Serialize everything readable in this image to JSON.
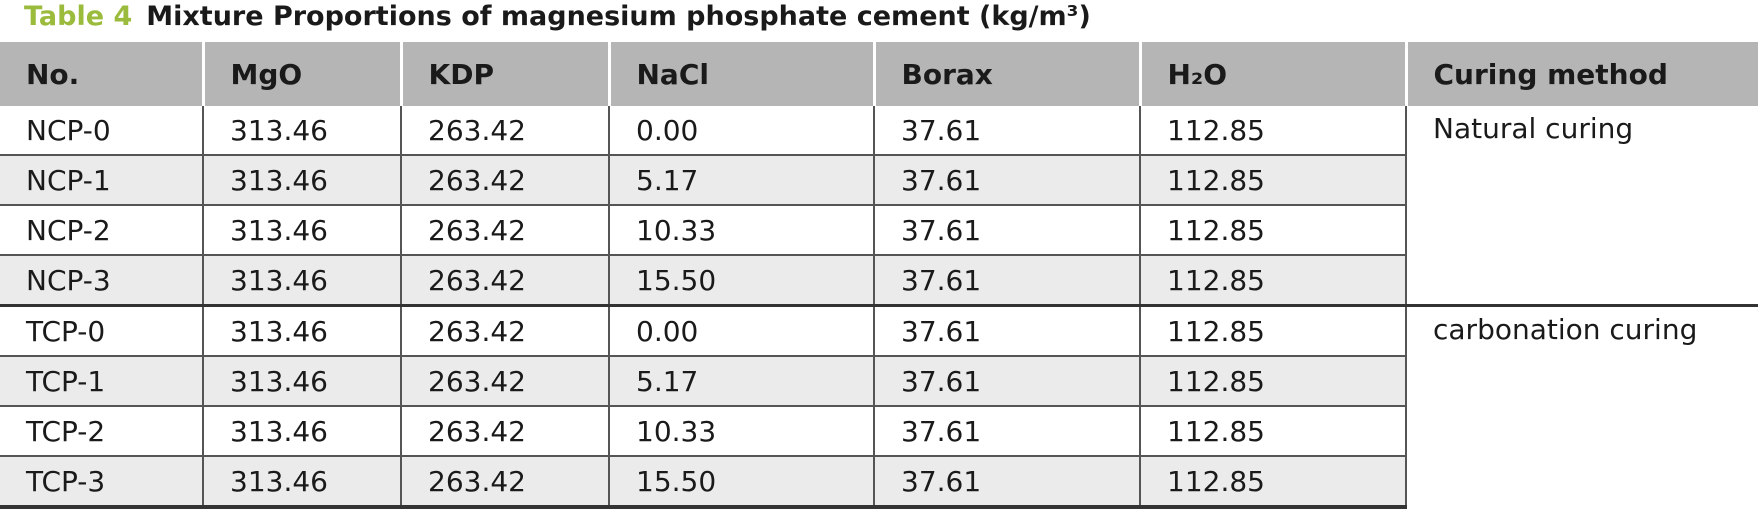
{
  "caption": {
    "label": "Table 4",
    "title": "Mixture Proportions of magnesium phosphate cement (kg/m³)"
  },
  "table": {
    "header": [
      "No.",
      "MgO",
      "KDP",
      "NaCl",
      "Borax",
      "H₂O",
      "Curing method"
    ],
    "groups": [
      {
        "curing": "Natural curing",
        "rows": [
          [
            "NCP-0",
            "313.46",
            "263.42",
            "0.00",
            "37.61",
            "112.85"
          ],
          [
            "NCP-1",
            "313.46",
            "263.42",
            "5.17",
            "37.61",
            "112.85"
          ],
          [
            "NCP-2",
            "313.46",
            "263.42",
            "10.33",
            "37.61",
            "112.85"
          ],
          [
            "NCP-3",
            "313.46",
            "263.42",
            "15.50",
            "37.61",
            "112.85"
          ]
        ]
      },
      {
        "curing": "carbonation curing",
        "rows": [
          [
            "TCP-0",
            "313.46",
            "263.42",
            "0.00",
            "37.61",
            "112.85"
          ],
          [
            "TCP-1",
            "313.46",
            "263.42",
            "5.17",
            "37.61",
            "112.85"
          ],
          [
            "TCP-2",
            "313.46",
            "263.42",
            "10.33",
            "37.61",
            "112.85"
          ],
          [
            "TCP-3",
            "313.46",
            "263.42",
            "15.50",
            "37.61",
            "112.85"
          ]
        ]
      }
    ]
  }
}
